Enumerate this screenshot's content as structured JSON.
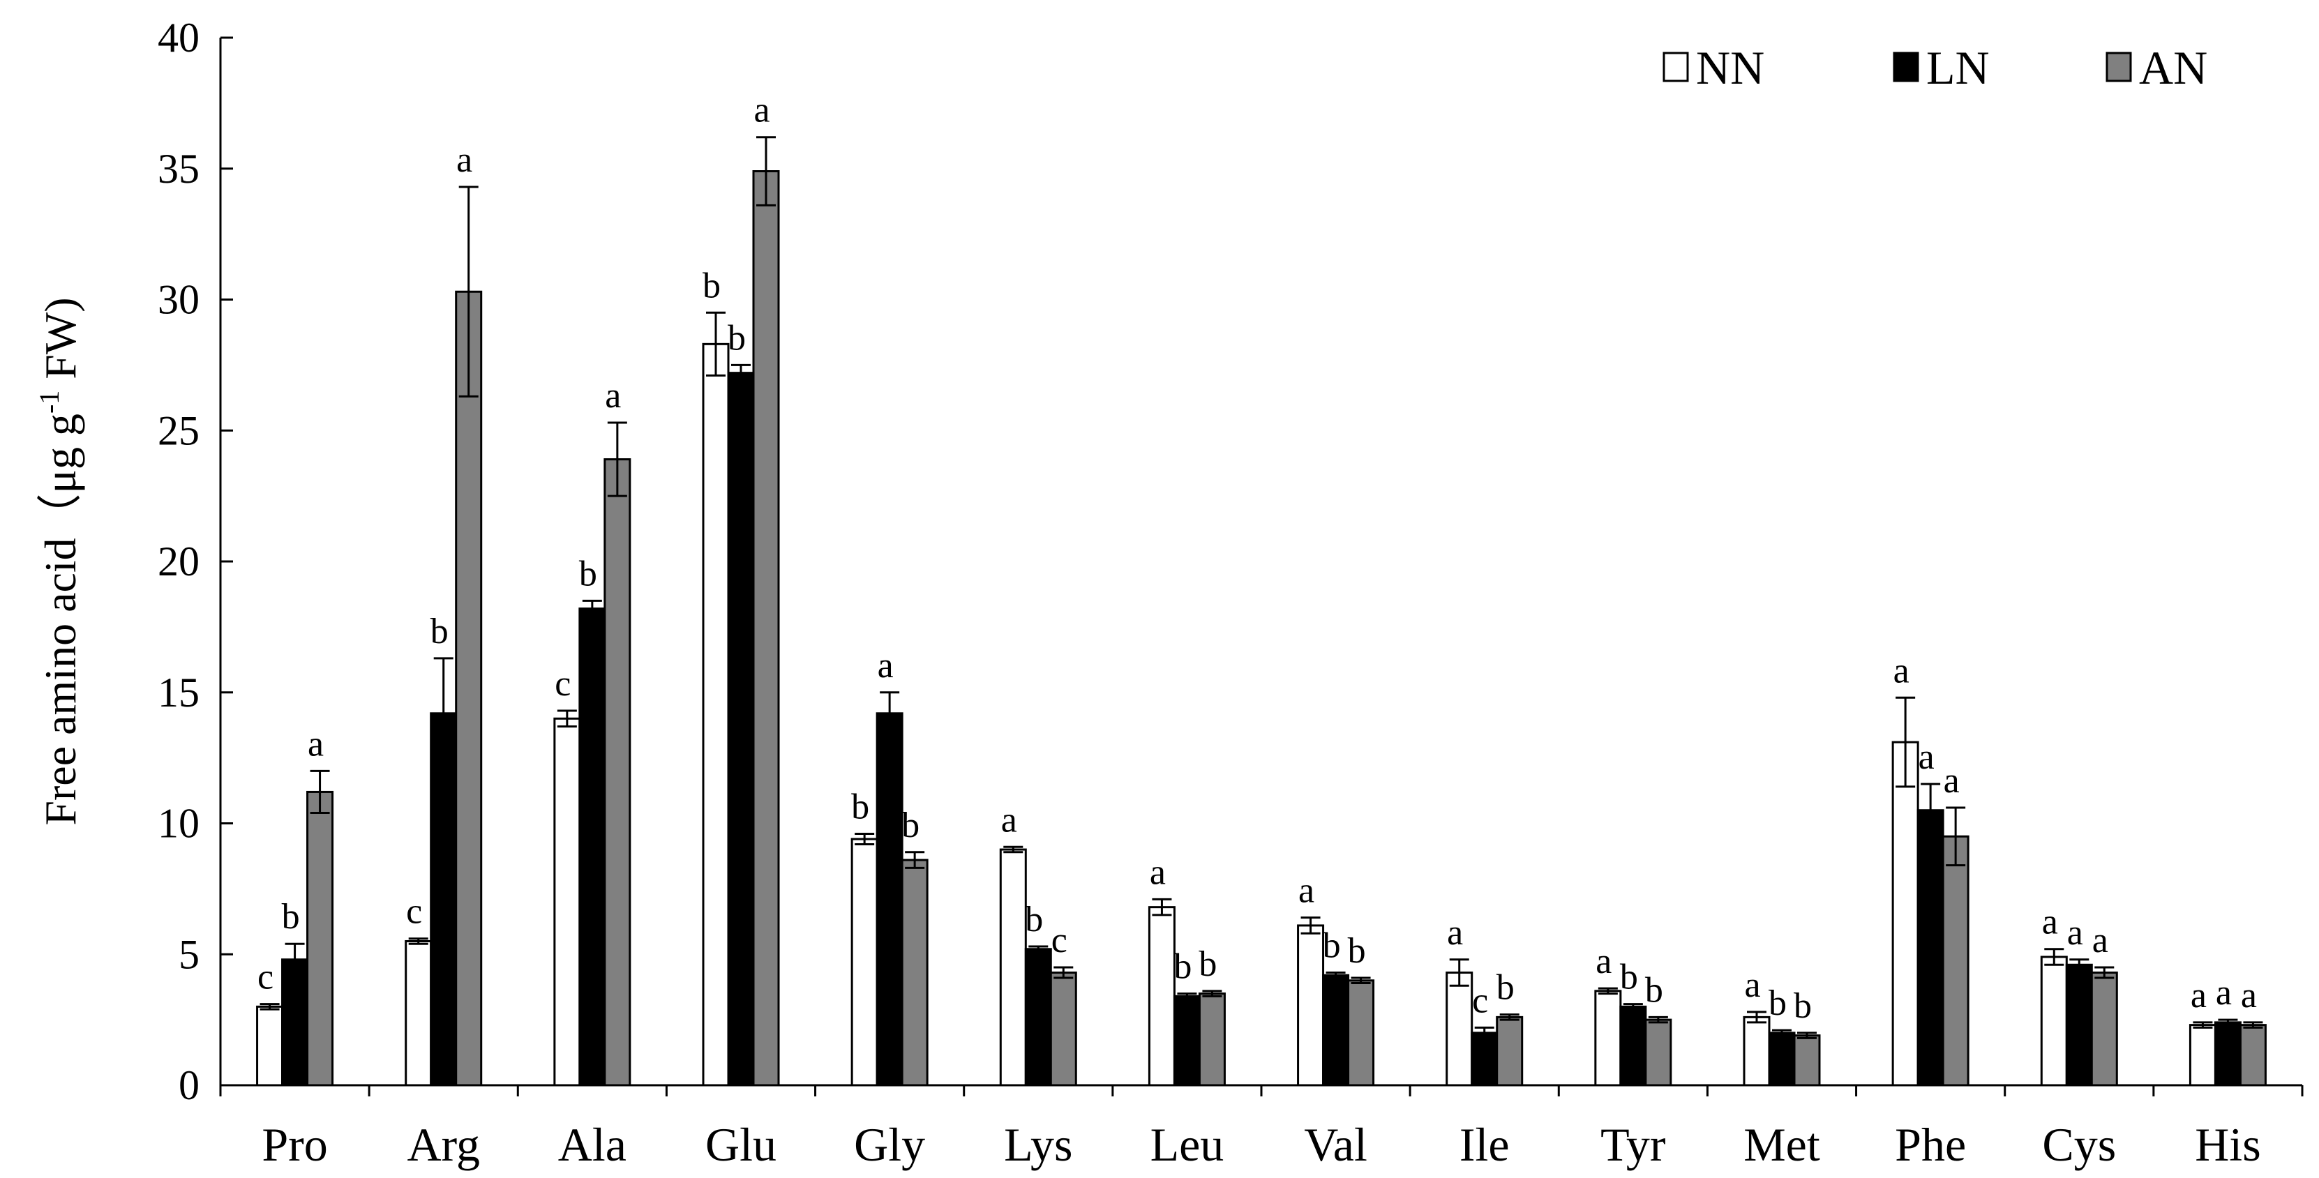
{
  "chart_data": {
    "type": "bar",
    "title": "",
    "xlabel": "",
    "ylabel": "Free amino acid（μg g",
    "ylabel_sup": "-1",
    "ylabel_tail": " FW)",
    "ylim": [
      0,
      40
    ],
    "yticks": [
      0,
      5,
      10,
      15,
      20,
      25,
      30,
      35,
      40
    ],
    "legend_position": "top-right",
    "categories": [
      "Pro",
      "Arg",
      "Ala",
      "Glu",
      "Gly",
      "Lys",
      "Leu",
      "Val",
      "Ile",
      "Tyr",
      "Met",
      "Phe",
      "Cys",
      "His"
    ],
    "series": [
      {
        "name": "NN",
        "color": "#ffffff",
        "values": [
          3.0,
          5.5,
          14.0,
          28.3,
          9.4,
          9.0,
          6.8,
          6.1,
          4.3,
          3.6,
          2.6,
          13.1,
          4.9,
          2.3
        ],
        "errors": [
          0.1,
          0.1,
          0.3,
          1.2,
          0.2,
          0.1,
          0.3,
          0.3,
          0.5,
          0.1,
          0.2,
          1.7,
          0.3,
          0.1
        ],
        "letters": [
          "c",
          "c",
          "c",
          "b",
          "b",
          "a",
          "a",
          "a",
          "a",
          "a",
          "a",
          "a",
          "a",
          "a"
        ]
      },
      {
        "name": "LN",
        "color": "#000000",
        "values": [
          4.8,
          14.2,
          18.2,
          27.2,
          14.2,
          5.2,
          3.4,
          4.2,
          2.0,
          3.0,
          2.0,
          10.5,
          4.6,
          2.4
        ],
        "errors": [
          0.6,
          2.1,
          0.3,
          0.3,
          0.8,
          0.1,
          0.1,
          0.1,
          0.2,
          0.1,
          0.1,
          1.0,
          0.2,
          0.1
        ],
        "letters": [
          "b",
          "b",
          "b",
          "b",
          "a",
          "b",
          "b",
          "b",
          "c",
          "b",
          "b",
          "a",
          "a",
          "a"
        ]
      },
      {
        "name": "AN",
        "color": "#808080",
        "values": [
          11.2,
          30.3,
          23.9,
          34.9,
          8.6,
          4.3,
          3.5,
          4.0,
          2.6,
          2.5,
          1.9,
          9.5,
          4.3,
          2.3
        ],
        "errors": [
          0.8,
          4.0,
          1.4,
          1.3,
          0.3,
          0.2,
          0.1,
          0.1,
          0.1,
          0.1,
          0.1,
          1.1,
          0.2,
          0.1
        ],
        "letters": [
          "a",
          "a",
          "a",
          "a",
          "b",
          "c",
          "b",
          "b",
          "b",
          "b",
          "b",
          "a",
          "a",
          "a"
        ]
      }
    ]
  }
}
